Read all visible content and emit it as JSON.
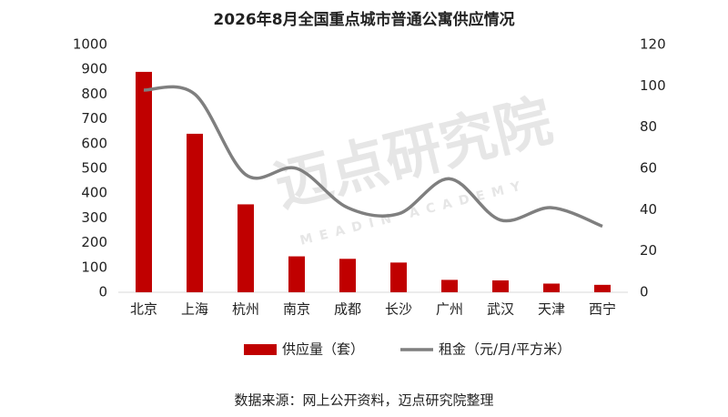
{
  "chart_data": {
    "type": "bar-line",
    "title": "2026年8月全国重点城市普通公寓供应情况",
    "categories": [
      "北京",
      "上海",
      "杭州",
      "南京",
      "成都",
      "长沙",
      "广州",
      "武汉",
      "天津",
      "西宁"
    ],
    "series": [
      {
        "name": "供应量（套）",
        "type": "bar",
        "color": "#c00000",
        "values": [
          890,
          640,
          355,
          145,
          135,
          120,
          50,
          48,
          35,
          30
        ]
      },
      {
        "name": "租金（元/月/平方米）",
        "type": "line",
        "axis": "y2",
        "color": "#7f7f7f",
        "values": [
          98,
          96,
          57,
          60,
          41,
          38,
          55,
          35,
          41,
          32
        ]
      }
    ],
    "ylim": [
      0,
      1000
    ],
    "yticks": [
      0,
      100,
      200,
      300,
      400,
      500,
      600,
      700,
      800,
      900,
      1000
    ],
    "y2lim": [
      0,
      120
    ],
    "y2ticks": [
      0,
      20,
      40,
      60,
      80,
      100,
      120
    ],
    "grid": false,
    "legend": "bottom",
    "source": "数据来源：网上公开资料，迈点研究院整理",
    "watermark": "迈点研究院",
    "watermark_en": "MEADIN ACADEMY"
  }
}
